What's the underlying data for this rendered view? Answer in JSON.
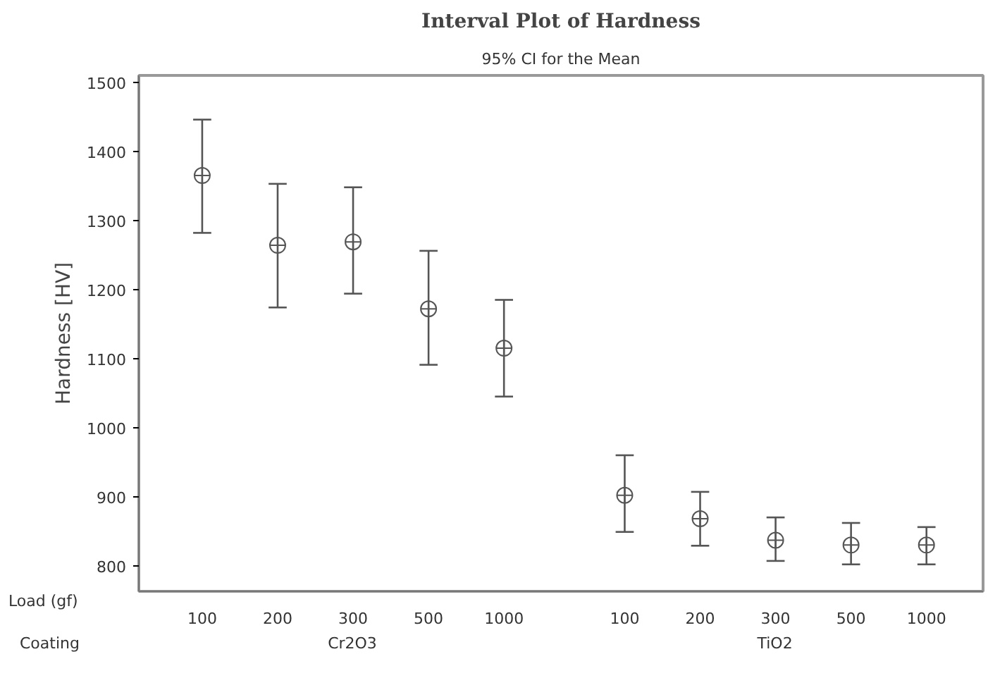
{
  "chart_data": {
    "type": "scatter",
    "title": "Interval Plot of Hardness",
    "subtitle": "95% CI for the Mean",
    "ylabel": "Hardness [HV]",
    "xlabel": "Load (gf)",
    "categories": [
      "100",
      "200",
      "300",
      "500",
      "1000",
      "100",
      "200",
      "300",
      "500",
      "1000"
    ],
    "annotations": [
      "Coating",
      "Cr2O3",
      "TiO2"
    ],
    "values": [
      1365,
      1264,
      1269,
      1172,
      1115,
      902,
      868,
      837,
      830,
      830
    ],
    "errors": [
      [
        1282,
        1446
      ],
      [
        1174,
        1353
      ],
      [
        1194,
        1348
      ],
      [
        1091,
        1256
      ],
      [
        1045,
        1185
      ],
      [
        849,
        960
      ],
      [
        829,
        907
      ],
      [
        807,
        870
      ],
      [
        802,
        862
      ],
      [
        802,
        856
      ]
    ],
    "color": "#555555",
    "marker": "circle",
    "ylim": [
      763,
      1510
    ],
    "yticks": [
      800,
      900,
      1000,
      1100,
      1200,
      1300,
      1400,
      1500
    ],
    "grid": false
  }
}
